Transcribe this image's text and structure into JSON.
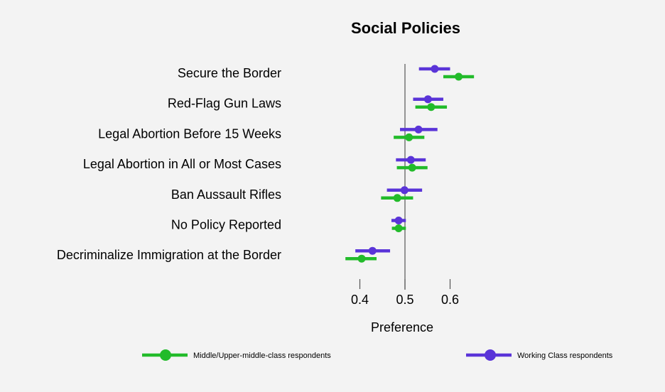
{
  "chart_data": {
    "type": "dot-errorbar",
    "title": "Social Policies",
    "xlabel": "Preference",
    "ylabel": "",
    "xticks": [
      0.4,
      0.5,
      0.6
    ],
    "tick_labels": [
      "0.4",
      "0.5",
      "0.6"
    ],
    "xlim": [
      0.35,
      0.65
    ],
    "reference_line": 0.5,
    "grid": false,
    "legend_position": "bottom",
    "categories": [
      "Secure the Border",
      "Red-Flag Gun Laws",
      "Legal Abortion Before 15 Weeks",
      "Legal Abortion in All or Most Cases",
      "Ban Aussault Rifles",
      "No Policy Reported",
      "Decriminalize Immigration at the Border"
    ],
    "series": [
      {
        "name": "Working Class respondents",
        "color": "#5a34d8",
        "values": [
          0.566,
          0.551,
          0.53,
          0.513,
          0.499,
          0.486,
          0.428
        ],
        "lower": [
          0.531,
          0.518,
          0.489,
          0.48,
          0.46,
          0.47,
          0.39
        ],
        "upper": [
          0.6,
          0.585,
          0.572,
          0.546,
          0.538,
          0.502,
          0.467
        ]
      },
      {
        "name": "Middle/Upper-middle-class respondents",
        "color": "#22bb2a",
        "values": [
          0.619,
          0.558,
          0.509,
          0.516,
          0.483,
          0.486,
          0.404
        ],
        "lower": [
          0.585,
          0.523,
          0.475,
          0.482,
          0.447,
          0.471,
          0.368
        ],
        "upper": [
          0.653,
          0.593,
          0.543,
          0.55,
          0.518,
          0.502,
          0.437
        ]
      }
    ]
  }
}
